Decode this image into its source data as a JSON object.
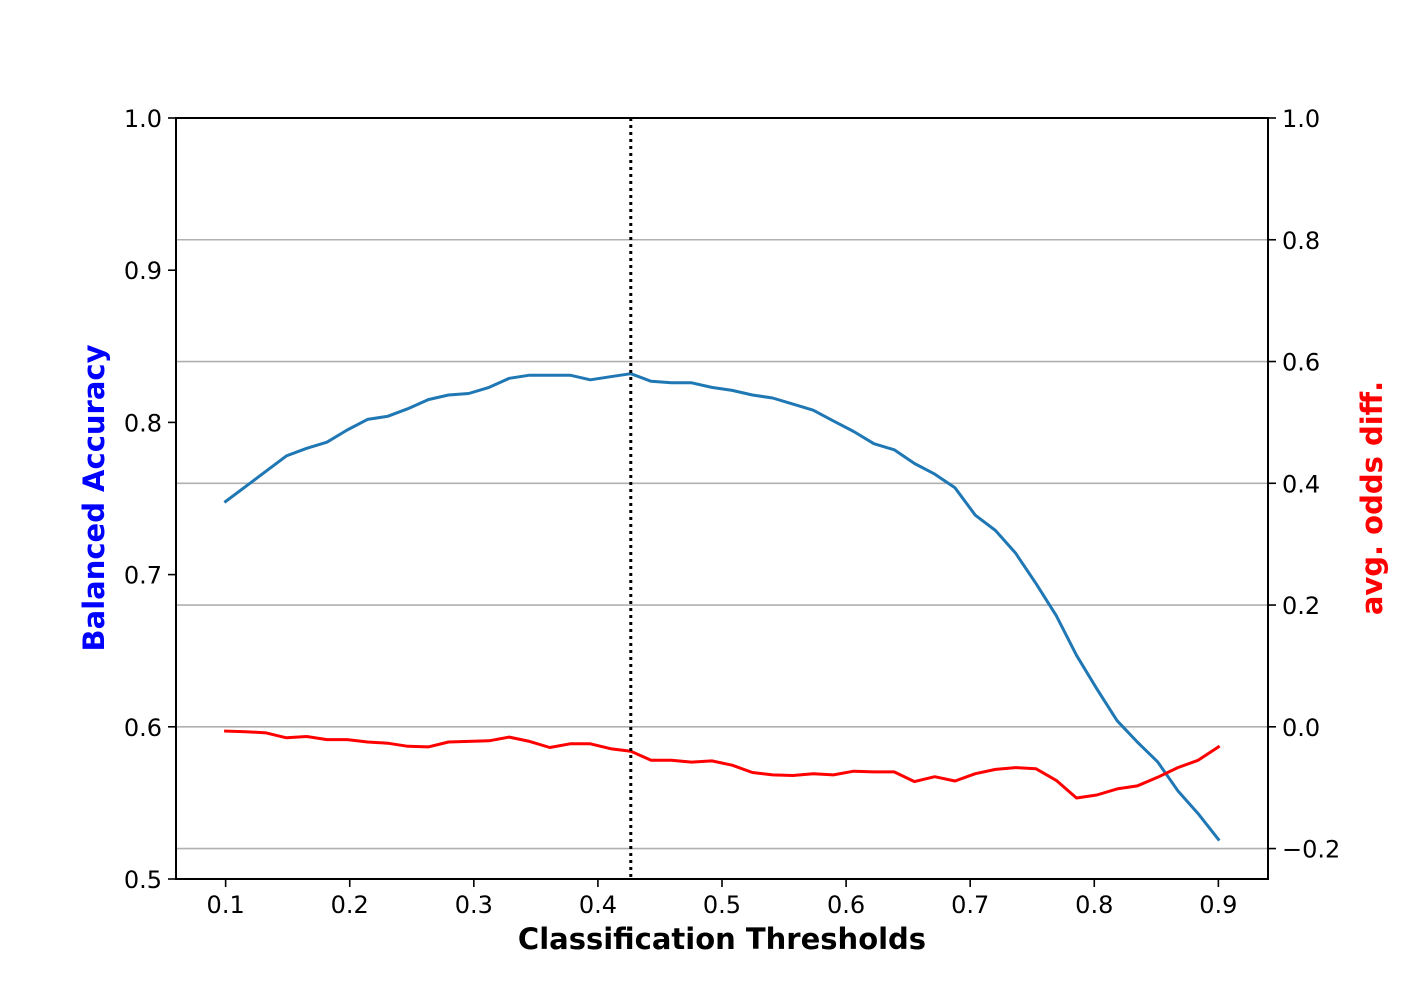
{
  "chart_data": {
    "type": "line",
    "title": "",
    "xlabel": "Classification Thresholds",
    "ylabel_left": "Balanced Accuracy",
    "ylabel_right": "avg. odds diff.",
    "xlim": [
      0.06,
      0.94
    ],
    "ylim_left": [
      0.5,
      1.0
    ],
    "ylim_right": [
      -0.25,
      1.0
    ],
    "x_ticks": [
      "0.1",
      "0.2",
      "0.3",
      "0.4",
      "0.5",
      "0.6",
      "0.7",
      "0.8",
      "0.9"
    ],
    "y_ticks_left": [
      "0.5",
      "0.6",
      "0.7",
      "0.8",
      "0.9",
      "1.0"
    ],
    "y_ticks_right": [
      "−0.2",
      "0.0",
      "0.2",
      "0.4",
      "0.6",
      "0.8",
      "1.0"
    ],
    "grid": "right-axis horizontal",
    "vline": {
      "x": 0.4265,
      "style": "dotted",
      "color": "#000000"
    },
    "x": [
      0.1,
      0.1163,
      0.1327,
      0.149,
      0.1653,
      0.1816,
      0.198,
      0.2143,
      0.2306,
      0.2469,
      0.2633,
      0.2796,
      0.2959,
      0.3122,
      0.3286,
      0.3449,
      0.3612,
      0.3776,
      0.3939,
      0.4102,
      0.4265,
      0.4429,
      0.4592,
      0.4755,
      0.4918,
      0.5082,
      0.5245,
      0.5408,
      0.5571,
      0.5735,
      0.5898,
      0.6061,
      0.6224,
      0.6388,
      0.6551,
      0.6714,
      0.6878,
      0.7041,
      0.7204,
      0.7367,
      0.7531,
      0.7694,
      0.7857,
      0.802,
      0.8184,
      0.8347,
      0.851,
      0.8673,
      0.8837,
      0.9
    ],
    "series": [
      {
        "name": "",
        "axis": "left",
        "color": "#1f77b4",
        "values": [
          0.748,
          0.758,
          0.768,
          0.778,
          0.783,
          0.787,
          0.795,
          0.802,
          0.804,
          0.809,
          0.815,
          0.818,
          0.819,
          0.823,
          0.829,
          0.831,
          0.831,
          0.831,
          0.828,
          0.83,
          0.832,
          0.827,
          0.826,
          0.826,
          0.823,
          0.821,
          0.818,
          0.816,
          0.812,
          0.808,
          0.801,
          0.794,
          0.786,
          0.782,
          0.773,
          0.766,
          0.757,
          0.739,
          0.729,
          0.714,
          0.694,
          0.673,
          0.647,
          0.625,
          0.604,
          0.59,
          0.577,
          0.558,
          0.543,
          0.526
        ]
      },
      {
        "name": "",
        "axis": "right",
        "color": "#ff0000",
        "values": [
          -0.007,
          -0.008,
          -0.01,
          -0.018,
          -0.016,
          -0.021,
          -0.021,
          -0.025,
          -0.027,
          -0.032,
          -0.033,
          -0.025,
          -0.024,
          -0.023,
          -0.017,
          -0.024,
          -0.034,
          -0.028,
          -0.028,
          -0.036,
          -0.04,
          -0.055,
          -0.055,
          -0.058,
          -0.056,
          -0.063,
          -0.075,
          -0.079,
          -0.08,
          -0.077,
          -0.079,
          -0.073,
          -0.074,
          -0.074,
          -0.09,
          -0.082,
          -0.089,
          -0.077,
          -0.07,
          -0.067,
          -0.069,
          -0.088,
          -0.117,
          -0.112,
          -0.102,
          -0.097,
          -0.083,
          -0.067,
          -0.055,
          -0.033
        ]
      }
    ]
  }
}
